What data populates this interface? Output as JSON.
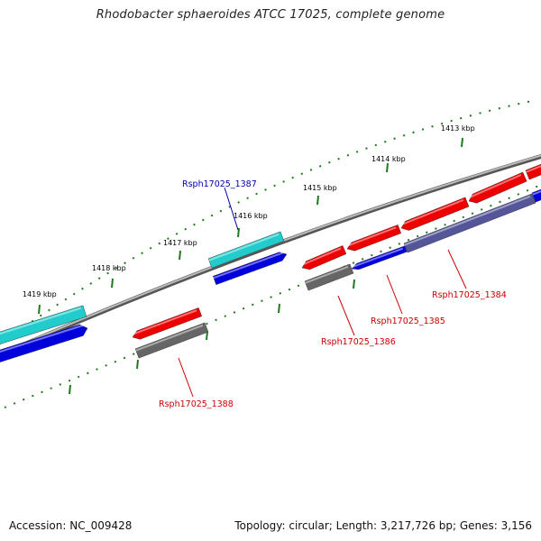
{
  "title": "Rhodobacter sphaeroides ATCC 17025, complete genome",
  "footer": {
    "accession": "Accession: NC_009428",
    "topology": "Topology: circular; Length: 3,217,726 bp; Genes: 3,156"
  },
  "colors": {
    "backbone": "#8a8a8a",
    "tick": "#1f7a1f",
    "red_gene": "#ee0000",
    "grey_gene": "#666666",
    "blue_gene": "#0000dd",
    "cyan_gene": "#22cccc",
    "purple_gene": "#55559a",
    "label_red": "#cc0000",
    "label_blue": "#0000aa"
  },
  "tick_labels": [
    "1413 kbp",
    "1414 kbp",
    "1415 kbp",
    "1416 kbp",
    "1417 kbp",
    "1418 kbp",
    "1419 kbp"
  ],
  "gene_labels": [
    {
      "text": "Rsph17025_1387",
      "color": "blue"
    },
    {
      "text": "Rsph17025_1384",
      "color": "red"
    },
    {
      "text": "Rsph17025_1385",
      "color": "red"
    },
    {
      "text": "Rsph17025_1386",
      "color": "red"
    },
    {
      "text": "Rsph17025_1388",
      "color": "red"
    }
  ]
}
